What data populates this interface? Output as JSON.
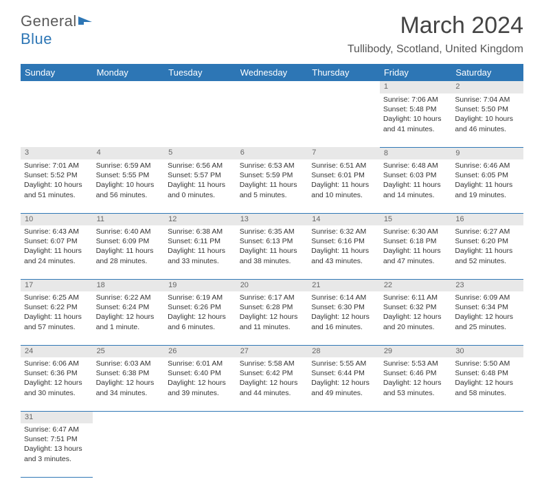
{
  "logo": {
    "text1": "General",
    "text2": "Blue"
  },
  "title": "March 2024",
  "location": "Tullibody, Scotland, United Kingdom",
  "colors": {
    "header_bg": "#2d76b5",
    "daynum_bg": "#e8e8e8",
    "border": "#2d76b5"
  },
  "weekdays": [
    "Sunday",
    "Monday",
    "Tuesday",
    "Wednesday",
    "Thursday",
    "Friday",
    "Saturday"
  ],
  "weeks": [
    {
      "nums": [
        "",
        "",
        "",
        "",
        "",
        "1",
        "2"
      ],
      "cells": [
        null,
        null,
        null,
        null,
        null,
        {
          "sunrise": "Sunrise: 7:06 AM",
          "sunset": "Sunset: 5:48 PM",
          "day1": "Daylight: 10 hours",
          "day2": "and 41 minutes."
        },
        {
          "sunrise": "Sunrise: 7:04 AM",
          "sunset": "Sunset: 5:50 PM",
          "day1": "Daylight: 10 hours",
          "day2": "and 46 minutes."
        }
      ]
    },
    {
      "nums": [
        "3",
        "4",
        "5",
        "6",
        "7",
        "8",
        "9"
      ],
      "cells": [
        {
          "sunrise": "Sunrise: 7:01 AM",
          "sunset": "Sunset: 5:52 PM",
          "day1": "Daylight: 10 hours",
          "day2": "and 51 minutes."
        },
        {
          "sunrise": "Sunrise: 6:59 AM",
          "sunset": "Sunset: 5:55 PM",
          "day1": "Daylight: 10 hours",
          "day2": "and 56 minutes."
        },
        {
          "sunrise": "Sunrise: 6:56 AM",
          "sunset": "Sunset: 5:57 PM",
          "day1": "Daylight: 11 hours",
          "day2": "and 0 minutes."
        },
        {
          "sunrise": "Sunrise: 6:53 AM",
          "sunset": "Sunset: 5:59 PM",
          "day1": "Daylight: 11 hours",
          "day2": "and 5 minutes."
        },
        {
          "sunrise": "Sunrise: 6:51 AM",
          "sunset": "Sunset: 6:01 PM",
          "day1": "Daylight: 11 hours",
          "day2": "and 10 minutes."
        },
        {
          "sunrise": "Sunrise: 6:48 AM",
          "sunset": "Sunset: 6:03 PM",
          "day1": "Daylight: 11 hours",
          "day2": "and 14 minutes."
        },
        {
          "sunrise": "Sunrise: 6:46 AM",
          "sunset": "Sunset: 6:05 PM",
          "day1": "Daylight: 11 hours",
          "day2": "and 19 minutes."
        }
      ]
    },
    {
      "nums": [
        "10",
        "11",
        "12",
        "13",
        "14",
        "15",
        "16"
      ],
      "cells": [
        {
          "sunrise": "Sunrise: 6:43 AM",
          "sunset": "Sunset: 6:07 PM",
          "day1": "Daylight: 11 hours",
          "day2": "and 24 minutes."
        },
        {
          "sunrise": "Sunrise: 6:40 AM",
          "sunset": "Sunset: 6:09 PM",
          "day1": "Daylight: 11 hours",
          "day2": "and 28 minutes."
        },
        {
          "sunrise": "Sunrise: 6:38 AM",
          "sunset": "Sunset: 6:11 PM",
          "day1": "Daylight: 11 hours",
          "day2": "and 33 minutes."
        },
        {
          "sunrise": "Sunrise: 6:35 AM",
          "sunset": "Sunset: 6:13 PM",
          "day1": "Daylight: 11 hours",
          "day2": "and 38 minutes."
        },
        {
          "sunrise": "Sunrise: 6:32 AM",
          "sunset": "Sunset: 6:16 PM",
          "day1": "Daylight: 11 hours",
          "day2": "and 43 minutes."
        },
        {
          "sunrise": "Sunrise: 6:30 AM",
          "sunset": "Sunset: 6:18 PM",
          "day1": "Daylight: 11 hours",
          "day2": "and 47 minutes."
        },
        {
          "sunrise": "Sunrise: 6:27 AM",
          "sunset": "Sunset: 6:20 PM",
          "day1": "Daylight: 11 hours",
          "day2": "and 52 minutes."
        }
      ]
    },
    {
      "nums": [
        "17",
        "18",
        "19",
        "20",
        "21",
        "22",
        "23"
      ],
      "cells": [
        {
          "sunrise": "Sunrise: 6:25 AM",
          "sunset": "Sunset: 6:22 PM",
          "day1": "Daylight: 11 hours",
          "day2": "and 57 minutes."
        },
        {
          "sunrise": "Sunrise: 6:22 AM",
          "sunset": "Sunset: 6:24 PM",
          "day1": "Daylight: 12 hours",
          "day2": "and 1 minute."
        },
        {
          "sunrise": "Sunrise: 6:19 AM",
          "sunset": "Sunset: 6:26 PM",
          "day1": "Daylight: 12 hours",
          "day2": "and 6 minutes."
        },
        {
          "sunrise": "Sunrise: 6:17 AM",
          "sunset": "Sunset: 6:28 PM",
          "day1": "Daylight: 12 hours",
          "day2": "and 11 minutes."
        },
        {
          "sunrise": "Sunrise: 6:14 AM",
          "sunset": "Sunset: 6:30 PM",
          "day1": "Daylight: 12 hours",
          "day2": "and 16 minutes."
        },
        {
          "sunrise": "Sunrise: 6:11 AM",
          "sunset": "Sunset: 6:32 PM",
          "day1": "Daylight: 12 hours",
          "day2": "and 20 minutes."
        },
        {
          "sunrise": "Sunrise: 6:09 AM",
          "sunset": "Sunset: 6:34 PM",
          "day1": "Daylight: 12 hours",
          "day2": "and 25 minutes."
        }
      ]
    },
    {
      "nums": [
        "24",
        "25",
        "26",
        "27",
        "28",
        "29",
        "30"
      ],
      "cells": [
        {
          "sunrise": "Sunrise: 6:06 AM",
          "sunset": "Sunset: 6:36 PM",
          "day1": "Daylight: 12 hours",
          "day2": "and 30 minutes."
        },
        {
          "sunrise": "Sunrise: 6:03 AM",
          "sunset": "Sunset: 6:38 PM",
          "day1": "Daylight: 12 hours",
          "day2": "and 34 minutes."
        },
        {
          "sunrise": "Sunrise: 6:01 AM",
          "sunset": "Sunset: 6:40 PM",
          "day1": "Daylight: 12 hours",
          "day2": "and 39 minutes."
        },
        {
          "sunrise": "Sunrise: 5:58 AM",
          "sunset": "Sunset: 6:42 PM",
          "day1": "Daylight: 12 hours",
          "day2": "and 44 minutes."
        },
        {
          "sunrise": "Sunrise: 5:55 AM",
          "sunset": "Sunset: 6:44 PM",
          "day1": "Daylight: 12 hours",
          "day2": "and 49 minutes."
        },
        {
          "sunrise": "Sunrise: 5:53 AM",
          "sunset": "Sunset: 6:46 PM",
          "day1": "Daylight: 12 hours",
          "day2": "and 53 minutes."
        },
        {
          "sunrise": "Sunrise: 5:50 AM",
          "sunset": "Sunset: 6:48 PM",
          "day1": "Daylight: 12 hours",
          "day2": "and 58 minutes."
        }
      ]
    },
    {
      "nums": [
        "31",
        "",
        "",
        "",
        "",
        "",
        ""
      ],
      "cells": [
        {
          "sunrise": "Sunrise: 6:47 AM",
          "sunset": "Sunset: 7:51 PM",
          "day1": "Daylight: 13 hours",
          "day2": "and 3 minutes."
        },
        null,
        null,
        null,
        null,
        null,
        null
      ]
    }
  ]
}
